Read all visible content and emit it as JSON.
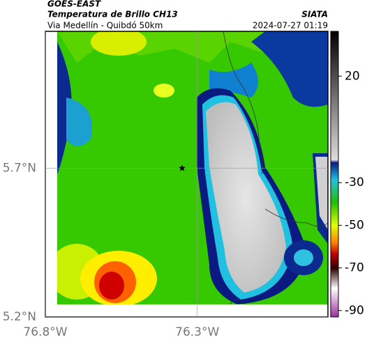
{
  "header": {
    "satellite": "GOES-EAST",
    "title": "Temperatura de Brillo CH13",
    "subtitle": "Via Medellín - Quibdó 50km",
    "source": "SIATA",
    "timestamp": "2024-07-27 01:19"
  },
  "map": {
    "lonlim": [
      -76.8,
      -75.87
    ],
    "latlim": [
      5.2,
      6.16
    ],
    "lonticks": [
      {
        "value": -76.8,
        "label": "76.8°W"
      },
      {
        "value": -76.3,
        "label": "76.3°W"
      }
    ],
    "latticks": [
      {
        "value": 5.2,
        "label": "5.2°N"
      },
      {
        "value": 5.7,
        "label": "5.7°N"
      }
    ],
    "grid": true,
    "marker": {
      "lon": -76.35,
      "lat": 5.7
    }
  },
  "colorbar": {
    "lim": [
      -93,
      41
    ],
    "ticks": [
      20,
      -30,
      -50,
      -70,
      -90
    ]
  }
}
